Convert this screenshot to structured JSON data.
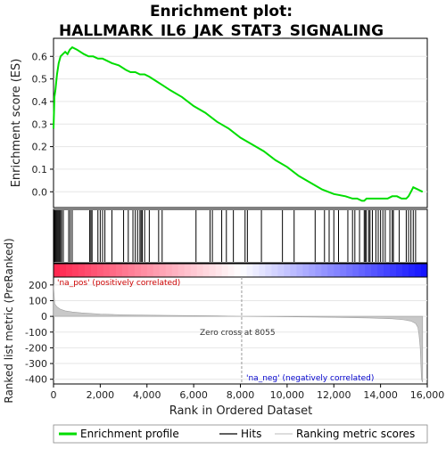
{
  "chart_data": {
    "type": "line",
    "title_line1": "Enrichment plot:",
    "title_line2": "HALLMARK_IL6_JAK_STAT3_SIGNALING",
    "enrichment_panel": {
      "ylabel": "Enrichment score (ES)",
      "yticks": [
        "0.0",
        "0.1",
        "0.2",
        "0.3",
        "0.4",
        "0.5",
        "0.6"
      ],
      "ylim": [
        -0.07,
        0.68
      ],
      "xlim": [
        0,
        16000
      ],
      "series": [
        {
          "name": "Enrichment profile",
          "color": "#00dd00",
          "x": [
            0,
            40,
            80,
            150,
            220,
            300,
            400,
            500,
            600,
            700,
            800,
            1000,
            1300,
            1500,
            1600,
            1700,
            1900,
            2100,
            2300,
            2500,
            2800,
            3100,
            3300,
            3500,
            3700,
            3900,
            4100,
            4400,
            4700,
            5000,
            5500,
            6000,
            6500,
            7000,
            7500,
            8000,
            8500,
            9000,
            9500,
            10000,
            10500,
            11000,
            11500,
            12000,
            12500,
            12800,
            13000,
            13200,
            13300,
            13400,
            13500,
            13700,
            13900,
            14100,
            14300,
            14500,
            14700,
            14900,
            15100,
            15200,
            15300,
            15400,
            15600,
            15800
          ],
          "y": [
            0.28,
            0.42,
            0.45,
            0.52,
            0.57,
            0.6,
            0.61,
            0.62,
            0.61,
            0.63,
            0.64,
            0.63,
            0.61,
            0.6,
            0.6,
            0.6,
            0.59,
            0.59,
            0.58,
            0.57,
            0.56,
            0.54,
            0.53,
            0.53,
            0.52,
            0.52,
            0.51,
            0.49,
            0.47,
            0.45,
            0.42,
            0.38,
            0.35,
            0.31,
            0.28,
            0.24,
            0.21,
            0.18,
            0.14,
            0.11,
            0.07,
            0.04,
            0.01,
            -0.01,
            -0.02,
            -0.03,
            -0.03,
            -0.04,
            -0.04,
            -0.03,
            -0.03,
            -0.03,
            -0.03,
            -0.03,
            -0.03,
            -0.02,
            -0.02,
            -0.03,
            -0.03,
            -0.02,
            0.0,
            0.02,
            0.01,
            0.0
          ]
        }
      ]
    },
    "hits": [
      30,
      60,
      100,
      140,
      180,
      220,
      260,
      300,
      350,
      420,
      650,
      720,
      800,
      1550,
      1600,
      1650,
      1900,
      2000,
      2100,
      2200,
      2500,
      3000,
      3200,
      3400,
      3500,
      3600,
      3700,
      3750,
      3800,
      3900,
      4100,
      4500,
      4650,
      6100,
      6700,
      6800,
      7200,
      7400,
      7700,
      8200,
      8300,
      8900,
      9800,
      10300,
      11200,
      11600,
      11800,
      12000,
      12200,
      12600,
      12800,
      12900,
      13100,
      13300,
      13350,
      13400,
      13500,
      13550,
      13650,
      13800,
      13900,
      14000,
      14100,
      14200,
      14400,
      14500,
      14550,
      14800,
      15100,
      15200,
      15300,
      15400,
      15500
    ],
    "ranked_panel": {
      "ylabel_line1": "Ranked list metric (PreRanked)",
      "yticks": [
        "-400",
        "-300",
        "-200",
        "-100",
        "0",
        "100",
        "200"
      ],
      "ylim": [
        -430,
        250
      ],
      "xlabel": "Rank in Ordered Dataset",
      "xticks": [
        "0",
        "2,000",
        "4,000",
        "6,000",
        "8,000",
        "10,000",
        "12,000",
        "14,000",
        "16,000"
      ],
      "xlim": [
        0,
        16000
      ],
      "zero_cross_text": "Zero cross at 8055",
      "zero_cross": 8055,
      "pos_label": "'na_pos' (positively correlated)",
      "neg_label": "'na_neg' (negatively correlated)",
      "metric_x": [
        0,
        50,
        150,
        300,
        500,
        800,
        1200,
        2000,
        3000,
        5000,
        7000,
        8055,
        10000,
        12000,
        13500,
        14500,
        15000,
        15300,
        15500,
        15600,
        15650,
        15700,
        15750,
        15800
      ],
      "metric_y": [
        200,
        80,
        60,
        45,
        35,
        28,
        22,
        15,
        10,
        6,
        3,
        0,
        -3,
        -6,
        -10,
        -15,
        -22,
        -30,
        -45,
        -70,
        -120,
        -200,
        -400,
        -420
      ]
    },
    "legend": [
      {
        "label": "Enrichment profile",
        "color": "#00dd00"
      },
      {
        "label": "Hits",
        "color": "#000000"
      },
      {
        "label": "Ranking metric scores",
        "color": "#bbbbbb"
      }
    ]
  }
}
